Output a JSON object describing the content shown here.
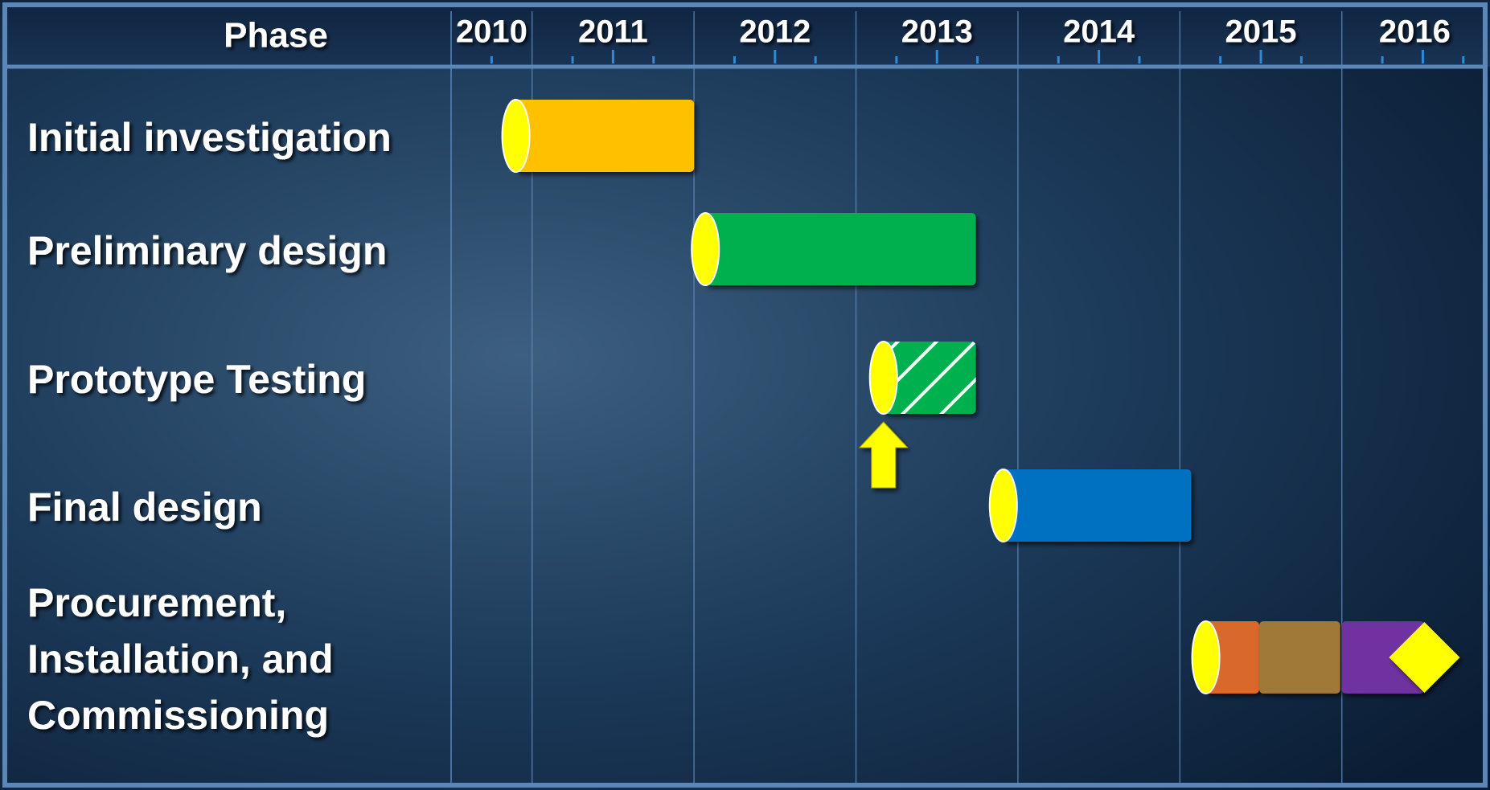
{
  "chart_data": {
    "type": "gantt",
    "header": "Phase",
    "xlim": [
      2010.5,
      2016.9
    ],
    "xticks": [
      2010,
      2011,
      2012,
      2013,
      2014,
      2015,
      2016
    ],
    "grid": true,
    "start_marker_color": "#ffff00",
    "tasks": [
      {
        "name": [
          "Initial investigation"
        ],
        "segments": [
          {
            "start": 2010.9,
            "end": 2012.0,
            "color": "#ffc000"
          }
        ]
      },
      {
        "name": [
          "Preliminary design"
        ],
        "segments": [
          {
            "start": 2012.07,
            "end": 2013.74,
            "color": "#00b050"
          }
        ]
      },
      {
        "name": [
          "Prototype Testing"
        ],
        "segments": [
          {
            "start": 2013.17,
            "end": 2013.74,
            "color": "#00b050",
            "hatched": true
          }
        ],
        "arrow": true
      },
      {
        "name": [
          "Final design"
        ],
        "segments": [
          {
            "start": 2013.91,
            "end": 2015.07,
            "color": "#0070c0"
          }
        ]
      },
      {
        "name": [
          "Procurement,",
          "Installation, and",
          "Commissioning"
        ],
        "segments": [
          {
            "start": 2015.16,
            "end": 2015.49,
            "color": "#d9692b"
          },
          {
            "start": 2015.49,
            "end": 2015.99,
            "color": "#a07838"
          },
          {
            "start": 2016.0,
            "end": 2016.51,
            "color": "#7030a0"
          }
        ],
        "milestone": 2016.51
      }
    ]
  }
}
